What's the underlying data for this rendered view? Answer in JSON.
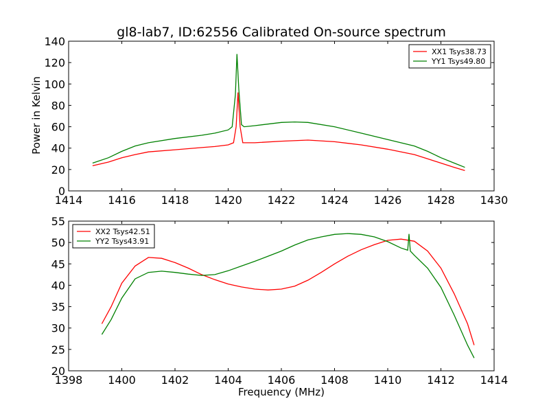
{
  "colors": {
    "red": "#ff0000",
    "green": "#008000",
    "frame": "#000000"
  },
  "chart_data": [
    {
      "type": "line",
      "title": "gl8-lab7, ID:62556 Calibrated On-source spectrum",
      "xlabel": "",
      "ylabel": "Power in Kelvin",
      "xlim": [
        1414,
        1430
      ],
      "ylim": [
        0,
        140
      ],
      "xticks": [
        "1414",
        "1416",
        "1418",
        "1420",
        "1422",
        "1424",
        "1426",
        "1428",
        "1430"
      ],
      "yticks": [
        "0",
        "20",
        "40",
        "60",
        "80",
        "100",
        "120",
        "140"
      ],
      "legend_position": "top-right",
      "series": [
        {
          "name": "XX1 Tsys38.73",
          "color": "#ff0000",
          "points": [
            [
              1414.9,
              23.5
            ],
            [
              1415.5,
              27
            ],
            [
              1416,
              31
            ],
            [
              1416.5,
              34
            ],
            [
              1417,
              36.5
            ],
            [
              1418,
              38.5
            ],
            [
              1419,
              40.5
            ],
            [
              1419.5,
              41.5
            ],
            [
              1420.0,
              43
            ],
            [
              1420.2,
              45
            ],
            [
              1420.3,
              60
            ],
            [
              1420.37,
              92
            ],
            [
              1420.45,
              60
            ],
            [
              1420.55,
              45
            ],
            [
              1421,
              45
            ],
            [
              1422,
              46.5
            ],
            [
              1423,
              47.5
            ],
            [
              1424,
              46
            ],
            [
              1425,
              43
            ],
            [
              1426,
              39
            ],
            [
              1427,
              34
            ],
            [
              1427.5,
              30
            ],
            [
              1428,
              26
            ],
            [
              1428.5,
              22
            ],
            [
              1428.9,
              19
            ]
          ]
        },
        {
          "name": "YY1 Tsys49.80",
          "color": "#008000",
          "points": [
            [
              1414.9,
              26
            ],
            [
              1415.5,
              31
            ],
            [
              1416,
              37
            ],
            [
              1416.5,
              42
            ],
            [
              1417,
              45
            ],
            [
              1418,
              49
            ],
            [
              1419,
              52
            ],
            [
              1419.5,
              54
            ],
            [
              1420.0,
              57
            ],
            [
              1420.15,
              60
            ],
            [
              1420.27,
              90
            ],
            [
              1420.33,
              128
            ],
            [
              1420.4,
              95
            ],
            [
              1420.5,
              62
            ],
            [
              1420.6,
              60
            ],
            [
              1421,
              61
            ],
            [
              1422,
              64
            ],
            [
              1422.5,
              64.5
            ],
            [
              1423,
              64
            ],
            [
              1424,
              60
            ],
            [
              1425,
              54
            ],
            [
              1426,
              48
            ],
            [
              1427,
              42
            ],
            [
              1427.5,
              37
            ],
            [
              1428,
              31
            ],
            [
              1428.5,
              26
            ],
            [
              1428.9,
              22
            ]
          ]
        }
      ]
    },
    {
      "type": "line",
      "title": "",
      "xlabel": "Frequency (MHz)",
      "ylabel": "",
      "xlim": [
        1398,
        1414
      ],
      "ylim": [
        20,
        55
      ],
      "xticks": [
        "1398",
        "1400",
        "1402",
        "1404",
        "1406",
        "1408",
        "1410",
        "1412",
        "1414"
      ],
      "yticks": [
        "20",
        "25",
        "30",
        "35",
        "40",
        "45",
        "50",
        "55"
      ],
      "legend_position": "top-left",
      "series": [
        {
          "name": "XX2 Tsys42.51",
          "color": "#ff0000",
          "points": [
            [
              1399.25,
              31
            ],
            [
              1399.6,
              35
            ],
            [
              1400,
              40.5
            ],
            [
              1400.5,
              44.5
            ],
            [
              1401,
              46.5
            ],
            [
              1401.5,
              46.3
            ],
            [
              1402,
              45.3
            ],
            [
              1402.5,
              44
            ],
            [
              1403,
              42.5
            ],
            [
              1403.5,
              41.3
            ],
            [
              1404,
              40.3
            ],
            [
              1404.5,
              39.6
            ],
            [
              1405,
              39.1
            ],
            [
              1405.5,
              38.9
            ],
            [
              1406,
              39.1
            ],
            [
              1406.5,
              39.8
            ],
            [
              1407,
              41.2
            ],
            [
              1407.5,
              43
            ],
            [
              1408,
              45
            ],
            [
              1408.5,
              46.8
            ],
            [
              1409,
              48.3
            ],
            [
              1409.5,
              49.5
            ],
            [
              1410,
              50.5
            ],
            [
              1410.5,
              50.8
            ],
            [
              1411,
              50.3
            ],
            [
              1411.5,
              48
            ],
            [
              1412,
              44
            ],
            [
              1412.5,
              38
            ],
            [
              1413,
              31
            ],
            [
              1413.25,
              26
            ]
          ]
        },
        {
          "name": "YY2 Tsys43.91",
          "color": "#008000",
          "points": [
            [
              1399.25,
              28.5
            ],
            [
              1399.6,
              32
            ],
            [
              1400,
              37
            ],
            [
              1400.5,
              41.5
            ],
            [
              1401,
              43
            ],
            [
              1401.5,
              43.3
            ],
            [
              1402,
              43
            ],
            [
              1402.5,
              42.6
            ],
            [
              1403,
              42.3
            ],
            [
              1403.5,
              42.5
            ],
            [
              1404,
              43.4
            ],
            [
              1404.5,
              44.5
            ],
            [
              1405,
              45.6
            ],
            [
              1405.5,
              46.8
            ],
            [
              1406,
              48
            ],
            [
              1406.5,
              49.4
            ],
            [
              1407,
              50.6
            ],
            [
              1407.5,
              51.3
            ],
            [
              1408,
              51.9
            ],
            [
              1408.5,
              52.1
            ],
            [
              1409,
              51.9
            ],
            [
              1409.5,
              51.3
            ],
            [
              1410,
              50.2
            ],
            [
              1410.5,
              48.7
            ],
            [
              1410.75,
              48.2
            ],
            [
              1410.8,
              52
            ],
            [
              1410.85,
              48
            ],
            [
              1411,
              47
            ],
            [
              1411.5,
              44
            ],
            [
              1412,
              39.5
            ],
            [
              1412.5,
              33
            ],
            [
              1413,
              26
            ],
            [
              1413.25,
              23
            ]
          ]
        }
      ]
    }
  ]
}
